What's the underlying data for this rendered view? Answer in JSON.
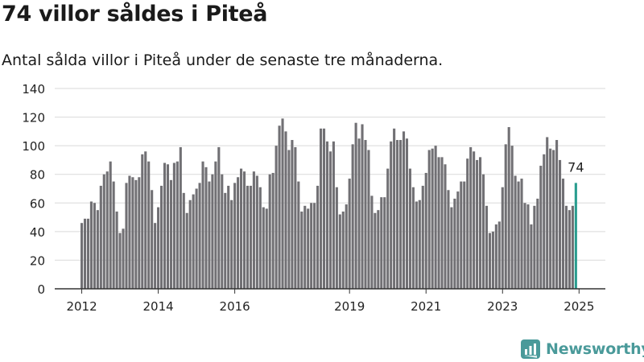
{
  "page": {
    "title": "74 villor såldes i Piteå",
    "subtitle": "Antal sålda villor i Piteå under de senaste tre månaderna.",
    "brand": "Newsworthy"
  },
  "colors": {
    "bar": "#717074",
    "highlight": "#2a9d8f",
    "axis": "#333333",
    "grid": "#d9d9d9",
    "brand": "#4a9a9a"
  },
  "chart_data": {
    "type": "bar",
    "title": "74 villor såldes i Piteå",
    "subtitle": "Antal sålda villor i Piteå under de senaste tre månaderna.",
    "xlabel": "",
    "ylabel": "",
    "ylim": [
      0,
      140
    ],
    "yticks": [
      0,
      20,
      40,
      60,
      80,
      100,
      120,
      140
    ],
    "xticks": [
      "2012",
      "2014",
      "2016",
      "2019",
      "2021",
      "2023",
      "2025"
    ],
    "grid": true,
    "legend": "none",
    "start_period": "2012-01",
    "highlight_label": "74",
    "values": [
      46,
      49,
      49,
      61,
      60,
      55,
      72,
      80,
      82,
      89,
      75,
      54,
      39,
      42,
      74,
      79,
      78,
      76,
      78,
      94,
      96,
      89,
      69,
      46,
      57,
      72,
      88,
      87,
      76,
      88,
      89,
      99,
      67,
      53,
      62,
      66,
      70,
      74,
      89,
      85,
      75,
      80,
      89,
      99,
      80,
      67,
      72,
      62,
      74,
      78,
      84,
      82,
      72,
      72,
      82,
      79,
      71,
      57,
      56,
      80,
      81,
      100,
      114,
      119,
      110,
      97,
      104,
      99,
      75,
      54,
      58,
      56,
      60,
      60,
      72,
      112,
      112,
      103,
      96,
      103,
      71,
      52,
      54,
      59,
      77,
      101,
      116,
      105,
      115,
      104,
      97,
      65,
      53,
      55,
      64,
      64,
      84,
      103,
      112,
      104,
      104,
      110,
      105,
      84,
      71,
      61,
      62,
      72,
      81,
      97,
      98,
      100,
      92,
      92,
      87,
      69,
      57,
      63,
      68,
      75,
      75,
      91,
      99,
      96,
      90,
      92,
      80,
      58,
      39,
      40,
      45,
      47,
      71,
      101,
      113,
      100,
      79,
      75,
      77,
      60,
      59,
      45,
      58,
      63,
      86,
      94,
      106,
      98,
      97,
      104,
      90,
      77,
      58,
      55,
      58,
      74
    ]
  }
}
